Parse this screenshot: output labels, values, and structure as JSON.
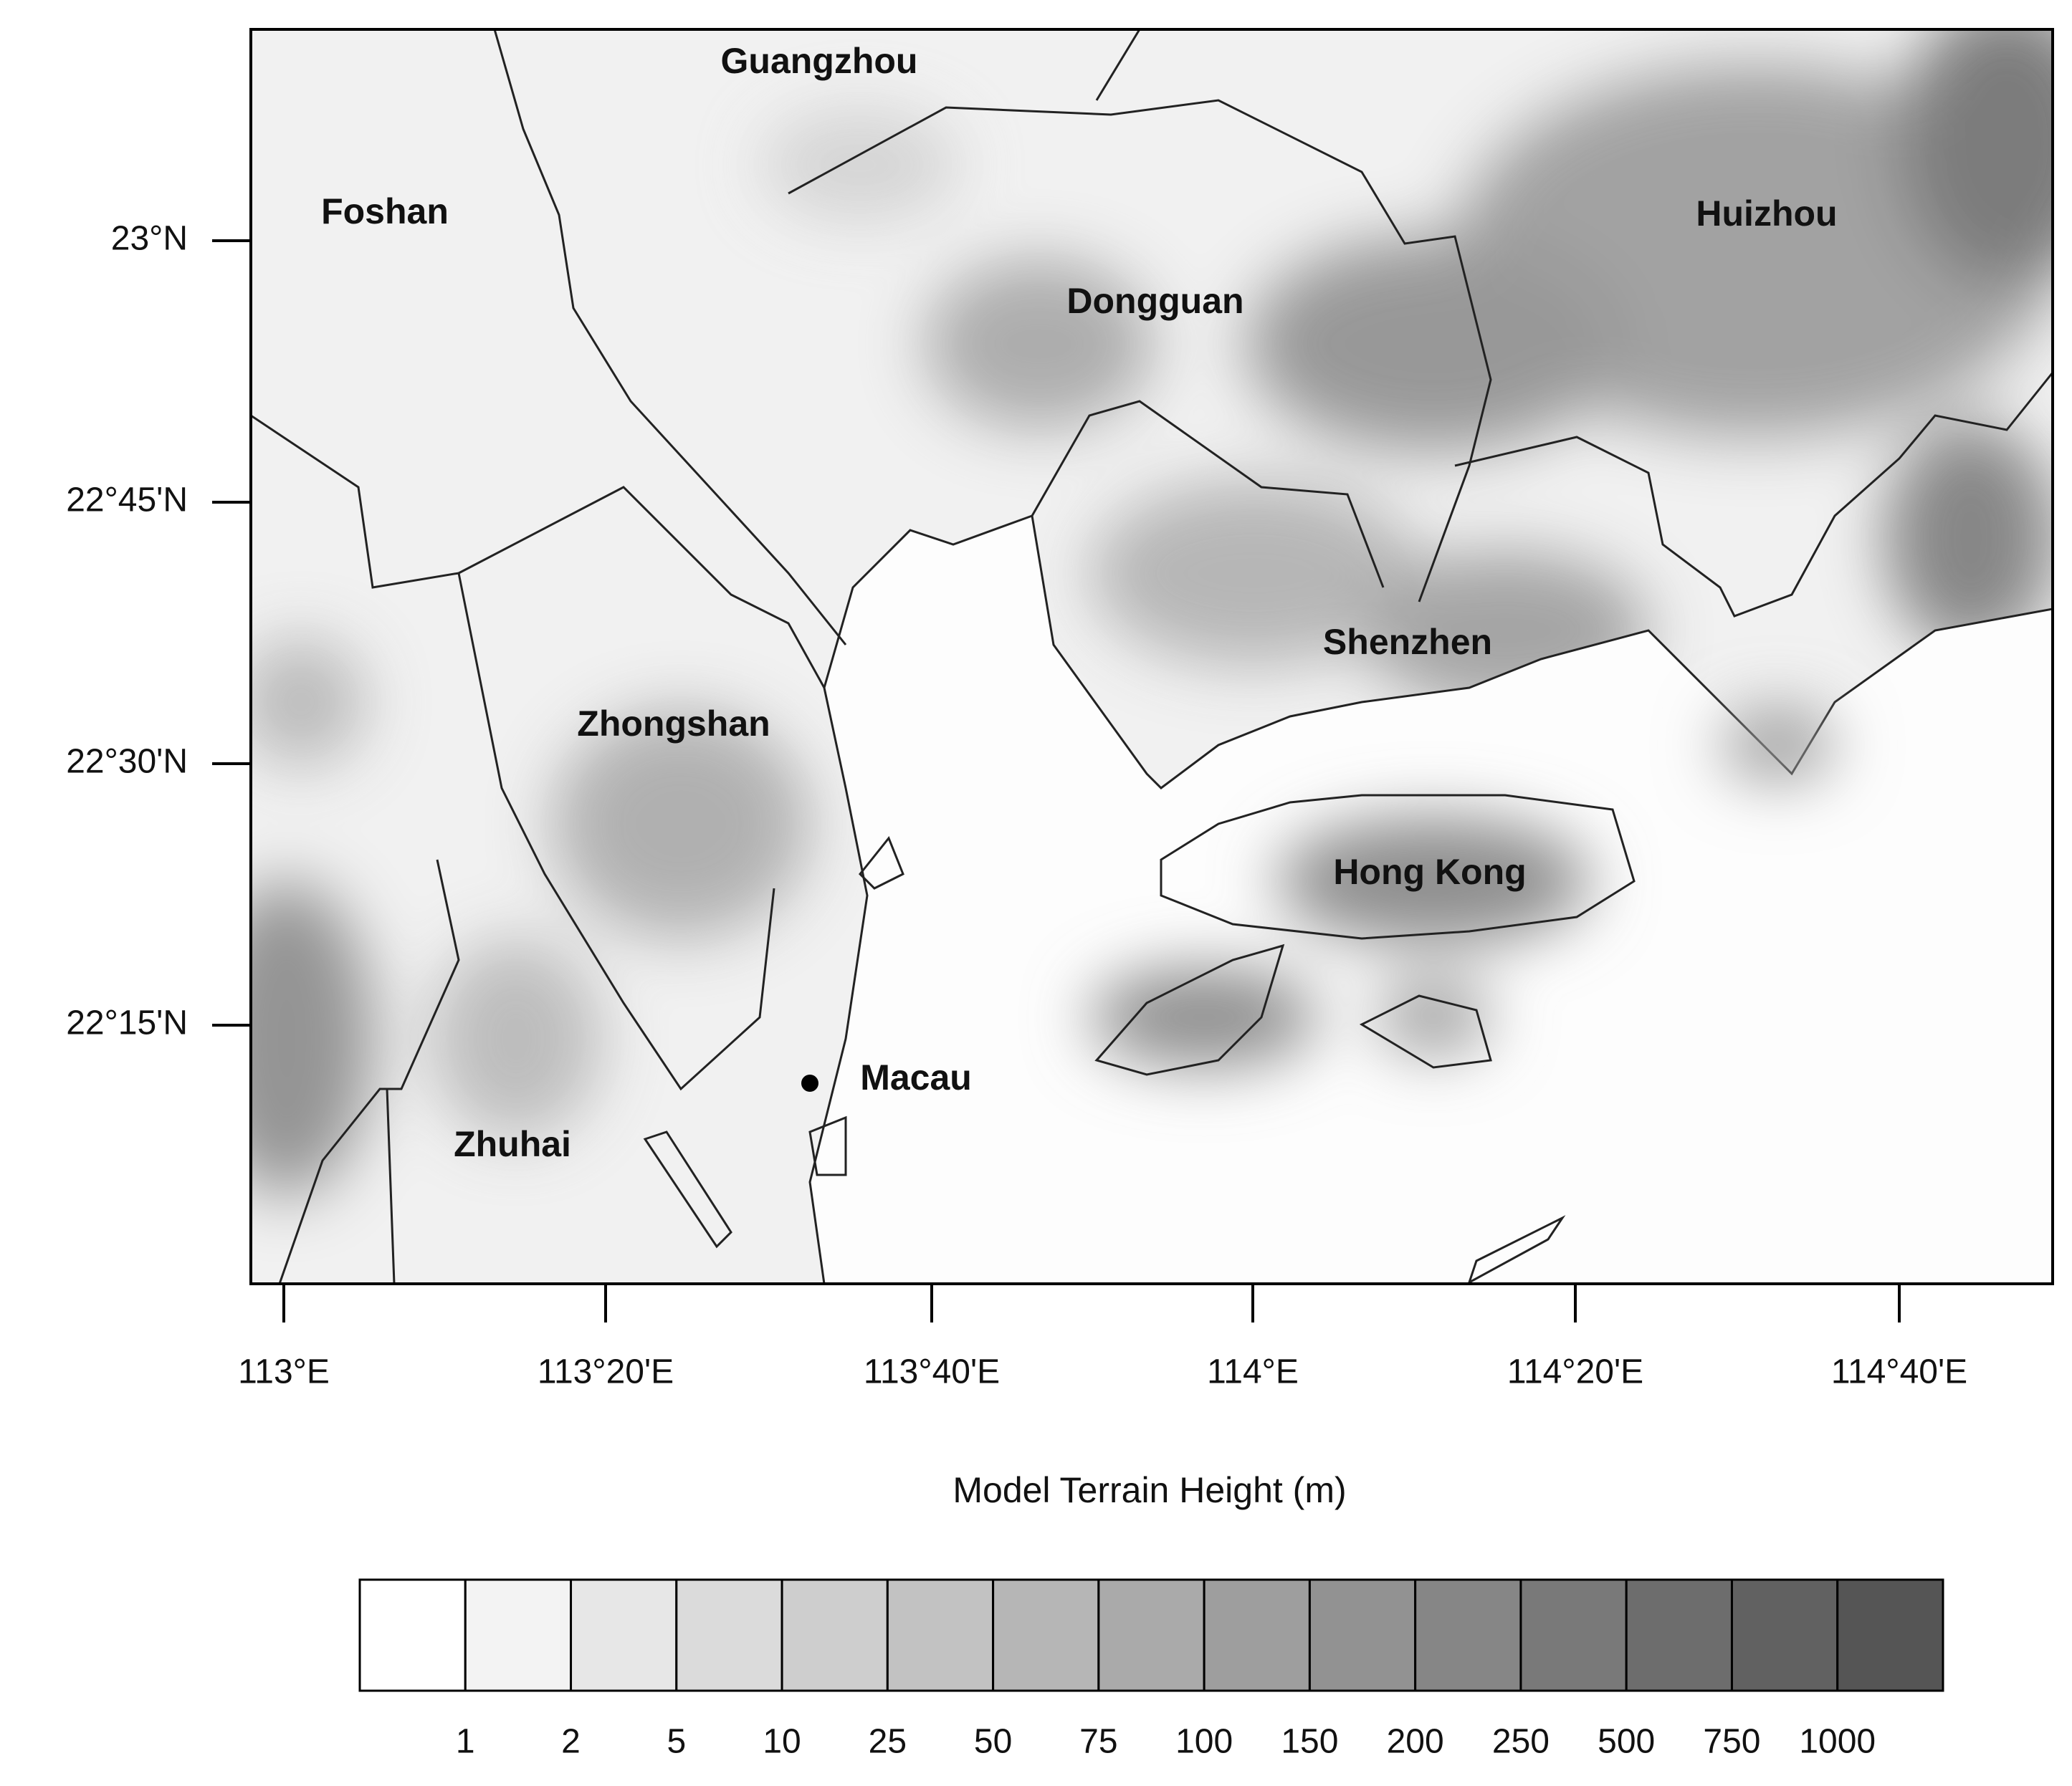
{
  "map": {
    "title": "Model Terrain Height (m)",
    "cities": [
      "Guangzhou",
      "Foshan",
      "Huizhou",
      "Dongguan",
      "Shenzhen",
      "Zhongshan",
      "Hong Kong",
      "Macau",
      "Zhuhai"
    ],
    "lat_ticks": [
      "23°N",
      "22°45'N",
      "22°30'N",
      "22°15'N"
    ],
    "lon_ticks": [
      "113°E",
      "113°20'E",
      "113°40'E",
      "114°E",
      "114°20'E",
      "114°40'E"
    ]
  },
  "colorbar": {
    "labels": [
      "1",
      "2",
      "5",
      "10",
      "25",
      "50",
      "75",
      "100",
      "150",
      "200",
      "250",
      "500",
      "750",
      "1000"
    ]
  }
}
